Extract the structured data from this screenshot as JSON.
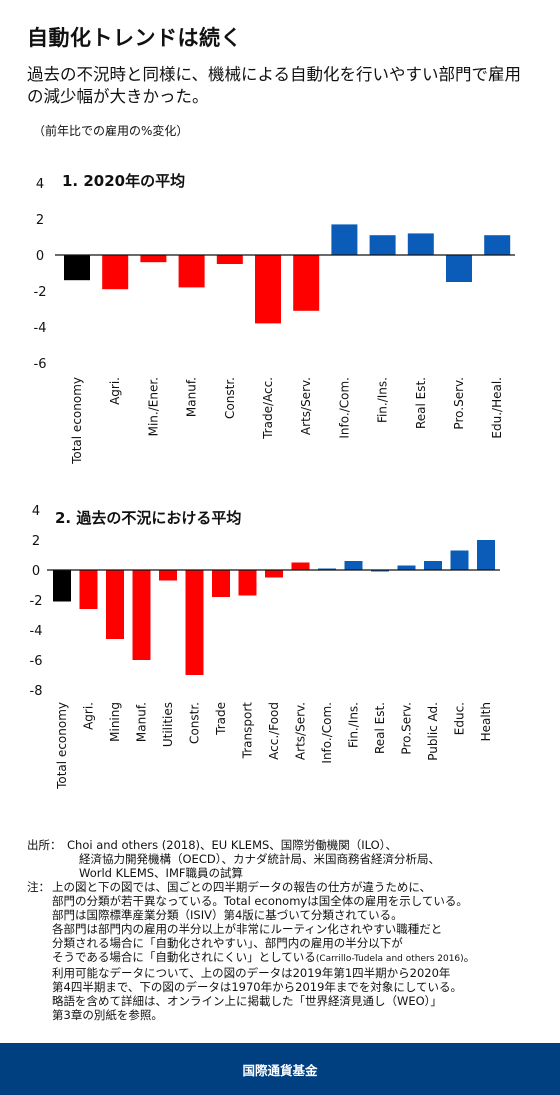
{
  "header": {
    "title": "自動化トレンドは続く",
    "subtitle": "過去の不況時と同様に、機械による自動化を行いやすい部門で雇用の減少幅が大きかった。",
    "unit_note": "（前年比での雇用の%変化）"
  },
  "colors": {
    "total": "#000000",
    "automatable": "#ff0000",
    "non_automatable": "#0a5cb8",
    "footer_bg": "#003f80"
  },
  "chart_data": [
    {
      "type": "bar",
      "title": "1. 2020年の平均",
      "categories": [
        "Total economy",
        "Agri.",
        "Min./Ener.",
        "Manuf.",
        "Constr.",
        "Trade/Acc.",
        "Arts/Serv.",
        "Info./Com.",
        "Fin./Ins.",
        "Real Est.",
        "Pro.Serv.",
        "Edu./Heal."
      ],
      "values": [
        -1.4,
        -1.9,
        -0.4,
        -1.8,
        -0.5,
        -3.8,
        -3.1,
        1.7,
        1.1,
        1.2,
        -1.5,
        1.1
      ],
      "groups": [
        "total",
        "automatable",
        "automatable",
        "automatable",
        "automatable",
        "automatable",
        "automatable",
        "non_automatable",
        "non_automatable",
        "non_automatable",
        "non_automatable",
        "non_automatable"
      ],
      "yticks": [
        4,
        2,
        0,
        -2,
        -4,
        -6
      ],
      "ylim": [
        -6,
        4
      ],
      "grid": false
    },
    {
      "type": "bar",
      "title": "2. 過去の不況における平均",
      "categories": [
        "Total economy",
        "Agri.",
        "Mining",
        "Manuf.",
        "Utilities",
        "Constr.",
        "Trade",
        "Transport",
        "Acc./Food",
        "Arts/Serv.",
        "Info./Com.",
        "Fin./Ins.",
        "Real Est.",
        "Pro.Serv.",
        "Public Ad.",
        "Educ.",
        "Health"
      ],
      "values": [
        -2.1,
        -2.6,
        -4.6,
        -6.0,
        -0.7,
        -7.0,
        -1.8,
        -1.7,
        -0.5,
        0.5,
        0.1,
        0.6,
        -0.1,
        0.3,
        0.6,
        1.3,
        2.0
      ],
      "groups": [
        "total",
        "automatable",
        "automatable",
        "automatable",
        "automatable",
        "automatable",
        "automatable",
        "automatable",
        "automatable",
        "automatable",
        "non_automatable",
        "non_automatable",
        "non_automatable",
        "non_automatable",
        "non_automatable",
        "non_automatable",
        "non_automatable"
      ],
      "yticks": [
        4,
        2,
        0,
        -2,
        -4,
        -6,
        -8
      ],
      "ylim": [
        -8,
        4
      ],
      "grid": false
    }
  ],
  "notes": {
    "source_label": "出所：",
    "source_lines": [
      "Choi and others (2018)、EU KLEMS、国際労働機関（ILO）、",
      "経済協力開発機構（OECD）、カナダ統計局、米国商務省経済分析局、",
      "World KLEMS、IMF職員の試算"
    ],
    "note_label": "注：",
    "note_lines": [
      "上の図と下の図では、国ごとの四半期データの報告の仕方が違うために、",
      "部門の分類が若干異なっている。Total economyは国全体の雇用を示している。",
      "部門は国際標準産業分類（ISIV）第4版に基づいて分類されている。",
      "各部門は部門内の雇用の半分以上が非常にルーティン化されやすい職種だと",
      "分類される場合に「自動化されやすい」、部門内の雇用の半分以下が",
      "そうである場合に「自動化されにくい」としている",
      "利用可能なデータについて、上の図のデータは2019年第1四半期から2020年",
      "第4四半期まで、下の図のデータは1970年から2019年までを対象にしている。",
      "略語を含めて詳細は、オンライン上に掲載した「世界経済見通し（WEO）」",
      "第3章の別紙を参照。"
    ],
    "citation": "(Carrillo-Tudela and others 2016)",
    "citation_end": "。"
  },
  "footer": {
    "label": "国際通貨基金"
  }
}
